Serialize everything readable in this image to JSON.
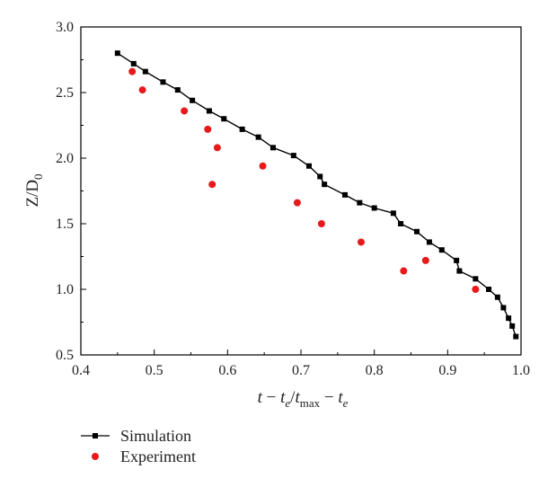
{
  "chart_data": {
    "type": "scatter",
    "xlim": [
      0.4,
      1.0
    ],
    "ylim": [
      0.5,
      3.0
    ],
    "x_ticks": [
      "0.4",
      "0.5",
      "0.6",
      "0.7",
      "0.8",
      "0.9",
      "1.0"
    ],
    "y_ticks": [
      "0.5",
      "1.0",
      "1.5",
      "2.0",
      "2.5",
      "3.0"
    ],
    "xlabel": "t − t_e/t_max − t_e",
    "ylabel": "Z/D_0",
    "grid": false,
    "legend_position": "bottom-left",
    "series": [
      {
        "name": "Simulation",
        "style": "line-square",
        "color": "#000000",
        "points": [
          [
            0.45,
            2.8
          ],
          [
            0.472,
            2.72
          ],
          [
            0.488,
            2.66
          ],
          [
            0.512,
            2.58
          ],
          [
            0.532,
            2.52
          ],
          [
            0.552,
            2.44
          ],
          [
            0.575,
            2.36
          ],
          [
            0.595,
            2.3
          ],
          [
            0.62,
            2.22
          ],
          [
            0.642,
            2.16
          ],
          [
            0.662,
            2.08
          ],
          [
            0.69,
            2.02
          ],
          [
            0.711,
            1.94
          ],
          [
            0.726,
            1.86
          ],
          [
            0.732,
            1.8
          ],
          [
            0.76,
            1.72
          ],
          [
            0.78,
            1.66
          ],
          [
            0.8,
            1.62
          ],
          [
            0.826,
            1.58
          ],
          [
            0.836,
            1.5
          ],
          [
            0.858,
            1.44
          ],
          [
            0.875,
            1.36
          ],
          [
            0.892,
            1.3
          ],
          [
            0.912,
            1.22
          ],
          [
            0.916,
            1.14
          ],
          [
            0.938,
            1.08
          ],
          [
            0.956,
            1.0
          ],
          [
            0.968,
            0.94
          ],
          [
            0.976,
            0.86
          ],
          [
            0.983,
            0.78
          ],
          [
            0.988,
            0.72
          ],
          [
            0.993,
            0.64
          ]
        ]
      },
      {
        "name": "Experiment",
        "style": "dot",
        "color": "#e8191b",
        "points": [
          [
            0.47,
            2.66
          ],
          [
            0.484,
            2.52
          ],
          [
            0.541,
            2.36
          ],
          [
            0.573,
            2.22
          ],
          [
            0.586,
            2.08
          ],
          [
            0.579,
            1.8
          ],
          [
            0.648,
            1.94
          ],
          [
            0.695,
            1.66
          ],
          [
            0.728,
            1.5
          ],
          [
            0.782,
            1.36
          ],
          [
            0.87,
            1.22
          ],
          [
            0.84,
            1.14
          ],
          [
            0.938,
            1.0
          ]
        ]
      }
    ]
  }
}
